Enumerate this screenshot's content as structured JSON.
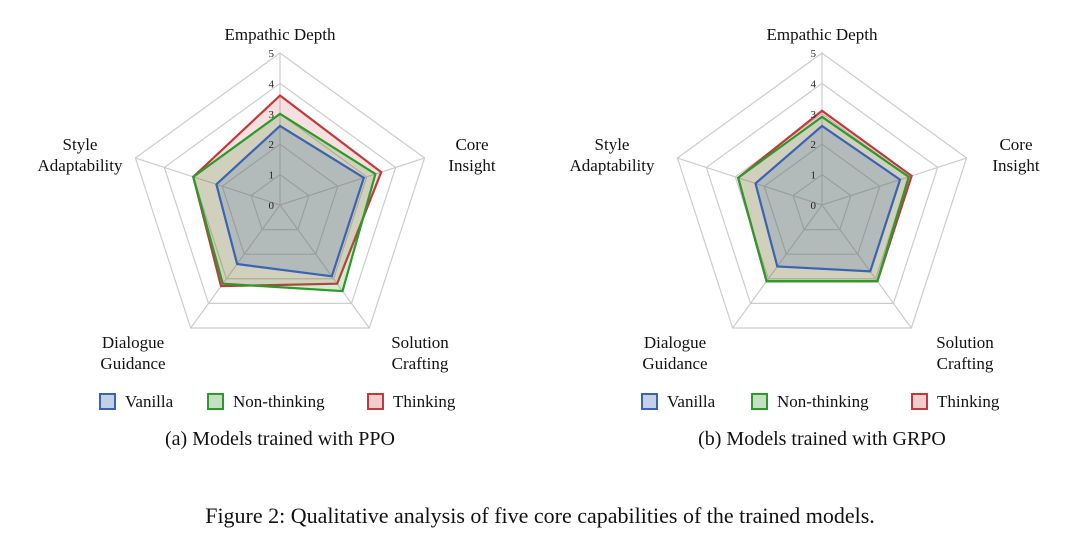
{
  "figure_caption": "Figure 2: Qualitative analysis of five core capabilities of the trained models.",
  "colors": {
    "vanilla": "#3b63b3",
    "non_thinking": "#2a9a2a",
    "thinking": "#c0393b",
    "grid": "#cccccc"
  },
  "chart_data": [
    {
      "type": "radar",
      "subcaption": "(a) Models trained with PPO",
      "axes": [
        {
          "lines": [
            "Empathic Depth"
          ]
        },
        {
          "lines": [
            "Core",
            "Insight"
          ]
        },
        {
          "lines": [
            "Solution",
            "Crafting"
          ]
        },
        {
          "lines": [
            "Dialogue",
            "Guidance"
          ]
        },
        {
          "lines": [
            "Style",
            "Adaptability"
          ]
        }
      ],
      "range": [
        0,
        5
      ],
      "ticks": [
        "0",
        "1",
        "2",
        "3",
        "4",
        "5"
      ],
      "series": [
        {
          "name": "Thinking",
          "values": [
            3.6,
            3.5,
            3.2,
            3.3,
            3.0
          ]
        },
        {
          "name": "Non-thinking",
          "values": [
            3.0,
            3.3,
            3.5,
            3.2,
            3.0
          ]
        },
        {
          "name": "Vanilla",
          "values": [
            2.6,
            2.9,
            2.9,
            2.4,
            2.2
          ]
        }
      ],
      "legend": [
        "Vanilla",
        "Non-thinking",
        "Thinking"
      ]
    },
    {
      "type": "radar",
      "subcaption": "(b) Models trained with GRPO",
      "axes": [
        {
          "lines": [
            "Empathic Depth"
          ]
        },
        {
          "lines": [
            "Core",
            "Insight"
          ]
        },
        {
          "lines": [
            "Solution",
            "Crafting"
          ]
        },
        {
          "lines": [
            "Dialogue",
            "Guidance"
          ]
        },
        {
          "lines": [
            "Style",
            "Adaptability"
          ]
        }
      ],
      "range": [
        0,
        5
      ],
      "ticks": [
        "0",
        "1",
        "2",
        "3",
        "4",
        "5"
      ],
      "series": [
        {
          "name": "Thinking",
          "values": [
            3.1,
            3.1,
            3.1,
            3.1,
            2.9
          ]
        },
        {
          "name": "Non-thinking",
          "values": [
            2.9,
            3.0,
            3.1,
            3.1,
            2.9
          ]
        },
        {
          "name": "Vanilla",
          "values": [
            2.6,
            2.7,
            2.7,
            2.5,
            2.3
          ]
        }
      ],
      "legend": [
        "Vanilla",
        "Non-thinking",
        "Thinking"
      ]
    }
  ]
}
